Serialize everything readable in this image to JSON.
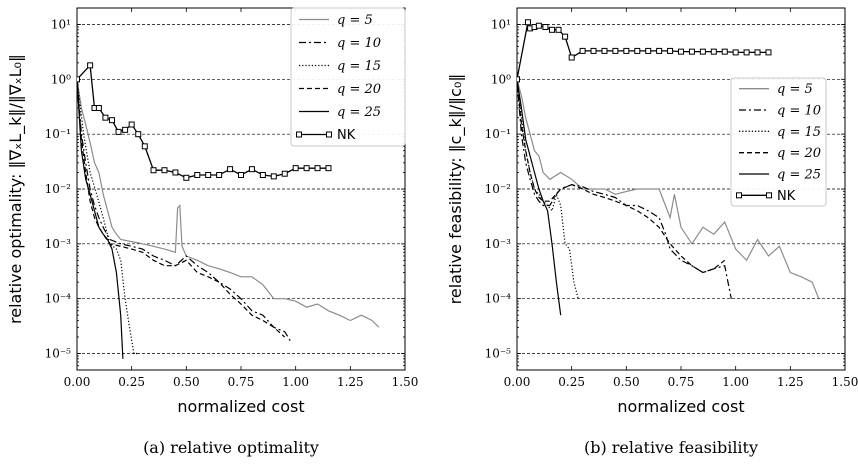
{
  "chart_data": [
    {
      "type": "line",
      "caption": "(a)  relative optimality",
      "xlabel": "normalized cost",
      "ylabel": "relative optimality:  ‖∇ₓL_k‖/‖∇ₓL₀‖",
      "yscale": "log",
      "xlim": [
        0,
        1.5
      ],
      "ylim": [
        5e-06,
        20
      ],
      "xticks": [
        "0.00",
        "0.25",
        "0.50",
        "0.75",
        "1.00",
        "1.25",
        "1.50"
      ],
      "yticks": [
        "10¹",
        "10⁰",
        "10⁻¹",
        "10⁻²",
        "10⁻³",
        "10⁻⁴",
        "10⁻⁵"
      ],
      "grid": "horizontal dashed at decades",
      "legend_position": "top-right",
      "series": [
        {
          "name": "q = 5",
          "color": "#8c8c8c",
          "dash": "solid",
          "x": [
            0,
            0.02,
            0.04,
            0.06,
            0.08,
            0.1,
            0.12,
            0.14,
            0.16,
            0.18,
            0.2,
            0.25,
            0.3,
            0.35,
            0.4,
            0.45,
            0.46,
            0.47,
            0.48,
            0.5,
            0.55,
            0.6,
            0.65,
            0.7,
            0.75,
            0.8,
            0.85,
            0.9,
            0.95,
            1.0,
            1.05,
            1.1,
            1.15,
            1.2,
            1.25,
            1.3,
            1.35,
            1.38
          ],
          "y": [
            1,
            0.3,
            0.15,
            0.07,
            0.03,
            0.02,
            0.008,
            0.004,
            0.002,
            0.0015,
            0.0012,
            0.0011,
            0.001,
            0.0009,
            0.0008,
            0.0007,
            0.0045,
            0.005,
            0.0009,
            0.0006,
            0.0005,
            0.0004,
            0.00035,
            0.0003,
            0.00025,
            0.00025,
            0.00018,
            0.0001,
            0.0001,
            9e-05,
            7e-05,
            8e-05,
            6e-05,
            5e-05,
            4e-05,
            5e-05,
            4e-05,
            3e-05
          ]
        },
        {
          "name": "q = 10",
          "color": "#000000",
          "dash": "dashdot",
          "x": [
            0,
            0.02,
            0.04,
            0.06,
            0.08,
            0.1,
            0.12,
            0.15,
            0.2,
            0.25,
            0.3,
            0.35,
            0.4,
            0.45,
            0.5,
            0.55,
            0.6,
            0.65,
            0.7,
            0.75,
            0.8,
            0.85,
            0.9,
            0.95,
            0.98
          ],
          "y": [
            1,
            0.1,
            0.03,
            0.01,
            0.005,
            0.003,
            0.002,
            0.0012,
            0.001,
            0.0009,
            0.0008,
            0.0006,
            0.0005,
            0.0004,
            0.0006,
            0.0004,
            0.0003,
            0.0002,
            0.00015,
            0.0001,
            6e-05,
            5e-05,
            3e-05,
            2.5e-05,
            1.6e-05
          ]
        },
        {
          "name": "q = 15",
          "color": "#000000",
          "dash": "dotted",
          "x": [
            0,
            0.03,
            0.06,
            0.09,
            0.12,
            0.15,
            0.18,
            0.2,
            0.22,
            0.24,
            0.26,
            0.28
          ],
          "y": [
            1,
            0.1,
            0.02,
            0.008,
            0.003,
            0.001,
            0.0008,
            0.0005,
            0.0001,
            3e-05,
            1e-05,
            1e-05
          ]
        },
        {
          "name": "q = 20",
          "color": "#000000",
          "dash": "dashed",
          "x": [
            0,
            0.02,
            0.04,
            0.06,
            0.08,
            0.1,
            0.12,
            0.15,
            0.2,
            0.25,
            0.3,
            0.35,
            0.4,
            0.45,
            0.5,
            0.55,
            0.6,
            0.65,
            0.7,
            0.75,
            0.8,
            0.85,
            0.9,
            0.95
          ],
          "y": [
            1,
            0.08,
            0.02,
            0.006,
            0.003,
            0.002,
            0.0015,
            0.001,
            0.0009,
            0.0008,
            0.0007,
            0.0005,
            0.0004,
            0.0004,
            0.0005,
            0.0003,
            0.00025,
            0.0002,
            0.00012,
            8e-05,
            5e-05,
            4e-05,
            3e-05,
            2e-05
          ]
        },
        {
          "name": "q = 25",
          "color": "#000000",
          "dash": "solid",
          "x": [
            0,
            0.02,
            0.04,
            0.06,
            0.08,
            0.1,
            0.12,
            0.14,
            0.16,
            0.18,
            0.2,
            0.21
          ],
          "y": [
            1,
            0.05,
            0.015,
            0.008,
            0.004,
            0.002,
            0.0015,
            0.0012,
            0.0008,
            0.0003,
            5e-05,
            8e-06
          ]
        },
        {
          "name": "NK",
          "color": "#000000",
          "dash": "solid",
          "markers": "square",
          "x": [
            0,
            0.06,
            0.08,
            0.1,
            0.13,
            0.16,
            0.19,
            0.22,
            0.25,
            0.28,
            0.31,
            0.35,
            0.4,
            0.45,
            0.5,
            0.55,
            0.6,
            0.65,
            0.7,
            0.75,
            0.8,
            0.85,
            0.9,
            0.95,
            1.0,
            1.05,
            1.1,
            1.15
          ],
          "y": [
            1,
            1.8,
            0.3,
            0.3,
            0.2,
            0.18,
            0.11,
            0.12,
            0.15,
            0.1,
            0.06,
            0.022,
            0.022,
            0.02,
            0.016,
            0.018,
            0.018,
            0.018,
            0.023,
            0.018,
            0.023,
            0.018,
            0.017,
            0.019,
            0.024,
            0.024,
            0.024,
            0.024
          ]
        }
      ]
    },
    {
      "type": "line",
      "caption": "(b)  relative feasibility",
      "xlabel": "normalized cost",
      "ylabel": "relative feasibility:  ‖c_k‖/‖c₀‖",
      "yscale": "log",
      "xlim": [
        0,
        1.5
      ],
      "ylim": [
        5e-06,
        20
      ],
      "xticks": [
        "0.00",
        "0.25",
        "0.50",
        "0.75",
        "1.00",
        "1.25",
        "1.50"
      ],
      "yticks": [
        "10¹",
        "10⁰",
        "10⁻¹",
        "10⁻²",
        "10⁻³",
        "10⁻⁴",
        "10⁻⁵"
      ],
      "grid": "horizontal dashed at decades",
      "legend_position": "right",
      "series": [
        {
          "name": "q = 5",
          "color": "#8c8c8c",
          "dash": "solid",
          "x": [
            0,
            0.02,
            0.04,
            0.06,
            0.08,
            0.1,
            0.12,
            0.15,
            0.2,
            0.25,
            0.3,
            0.35,
            0.4,
            0.45,
            0.5,
            0.55,
            0.6,
            0.65,
            0.7,
            0.72,
            0.75,
            0.8,
            0.85,
            0.9,
            0.95,
            1.0,
            1.05,
            1.1,
            1.15,
            1.2,
            1.25,
            1.3,
            1.35,
            1.38
          ],
          "y": [
            1,
            0.5,
            0.2,
            0.1,
            0.05,
            0.04,
            0.02,
            0.015,
            0.02,
            0.015,
            0.01,
            0.01,
            0.01,
            0.008,
            0.009,
            0.01,
            0.01,
            0.01,
            0.003,
            0.008,
            0.002,
            0.001,
            0.002,
            0.0015,
            0.0025,
            0.0008,
            0.0005,
            0.0012,
            0.0006,
            0.0009,
            0.0003,
            0.00025,
            0.0002,
            0.0001
          ]
        },
        {
          "name": "q = 10",
          "color": "#000000",
          "dash": "dashdot",
          "x": [
            0,
            0.02,
            0.04,
            0.06,
            0.08,
            0.1,
            0.12,
            0.15,
            0.18,
            0.2,
            0.25,
            0.3,
            0.35,
            0.4,
            0.45,
            0.5,
            0.55,
            0.6,
            0.65,
            0.68,
            0.7,
            0.75,
            0.8,
            0.85,
            0.9,
            0.95,
            0.98
          ],
          "y": [
            1,
            0.1,
            0.03,
            0.015,
            0.008,
            0.006,
            0.005,
            0.005,
            0.008,
            0.01,
            0.012,
            0.011,
            0.009,
            0.008,
            0.007,
            0.005,
            0.005,
            0.004,
            0.003,
            0.0015,
            0.0008,
            0.0005,
            0.0004,
            0.0003,
            0.00035,
            0.0004,
            0.0001
          ]
        },
        {
          "name": "q = 15",
          "color": "#000000",
          "dash": "dotted",
          "x": [
            0,
            0.02,
            0.04,
            0.06,
            0.08,
            0.1,
            0.12,
            0.14,
            0.16,
            0.18,
            0.2,
            0.22,
            0.24,
            0.26,
            0.28
          ],
          "y": [
            1,
            0.2,
            0.05,
            0.02,
            0.01,
            0.008,
            0.006,
            0.005,
            0.004,
            0.008,
            0.005,
            0.001,
            0.0008,
            0.0002,
            0.0001
          ]
        },
        {
          "name": "q = 20",
          "color": "#000000",
          "dash": "dashed",
          "x": [
            0,
            0.02,
            0.04,
            0.06,
            0.08,
            0.1,
            0.12,
            0.15,
            0.2,
            0.25,
            0.3,
            0.35,
            0.4,
            0.45,
            0.5,
            0.55,
            0.6,
            0.65,
            0.7,
            0.75,
            0.8,
            0.85,
            0.9,
            0.95
          ],
          "y": [
            1,
            0.15,
            0.05,
            0.02,
            0.01,
            0.007,
            0.006,
            0.006,
            0.01,
            0.012,
            0.01,
            0.008,
            0.007,
            0.006,
            0.005,
            0.004,
            0.003,
            0.002,
            0.001,
            0.0006,
            0.0004,
            0.0003,
            0.00035,
            0.0005
          ]
        },
        {
          "name": "q = 25",
          "color": "#000000",
          "dash": "solid",
          "x": [
            0,
            0.02,
            0.04,
            0.06,
            0.08,
            0.1,
            0.12,
            0.14,
            0.16,
            0.18,
            0.2
          ],
          "y": [
            1,
            0.3,
            0.08,
            0.04,
            0.02,
            0.01,
            0.006,
            0.004,
            0.001,
            0.0002,
            5e-05
          ]
        },
        {
          "name": "NK",
          "color": "#000000",
          "dash": "solid",
          "markers": "square",
          "x": [
            0,
            0.05,
            0.06,
            0.08,
            0.1,
            0.13,
            0.16,
            0.19,
            0.22,
            0.25,
            0.3,
            0.35,
            0.4,
            0.45,
            0.5,
            0.55,
            0.6,
            0.65,
            0.7,
            0.75,
            0.8,
            0.85,
            0.9,
            0.95,
            1.0,
            1.05,
            1.1,
            1.15
          ],
          "y": [
            1,
            11,
            8.5,
            9,
            9.5,
            9,
            8,
            8,
            6,
            2.5,
            3.3,
            3.3,
            3.3,
            3.3,
            3.3,
            3.3,
            3.3,
            3.3,
            3.3,
            3.2,
            3.2,
            3.2,
            3.2,
            3.2,
            3.1,
            3.1,
            3.1,
            3.1
          ]
        }
      ]
    }
  ]
}
